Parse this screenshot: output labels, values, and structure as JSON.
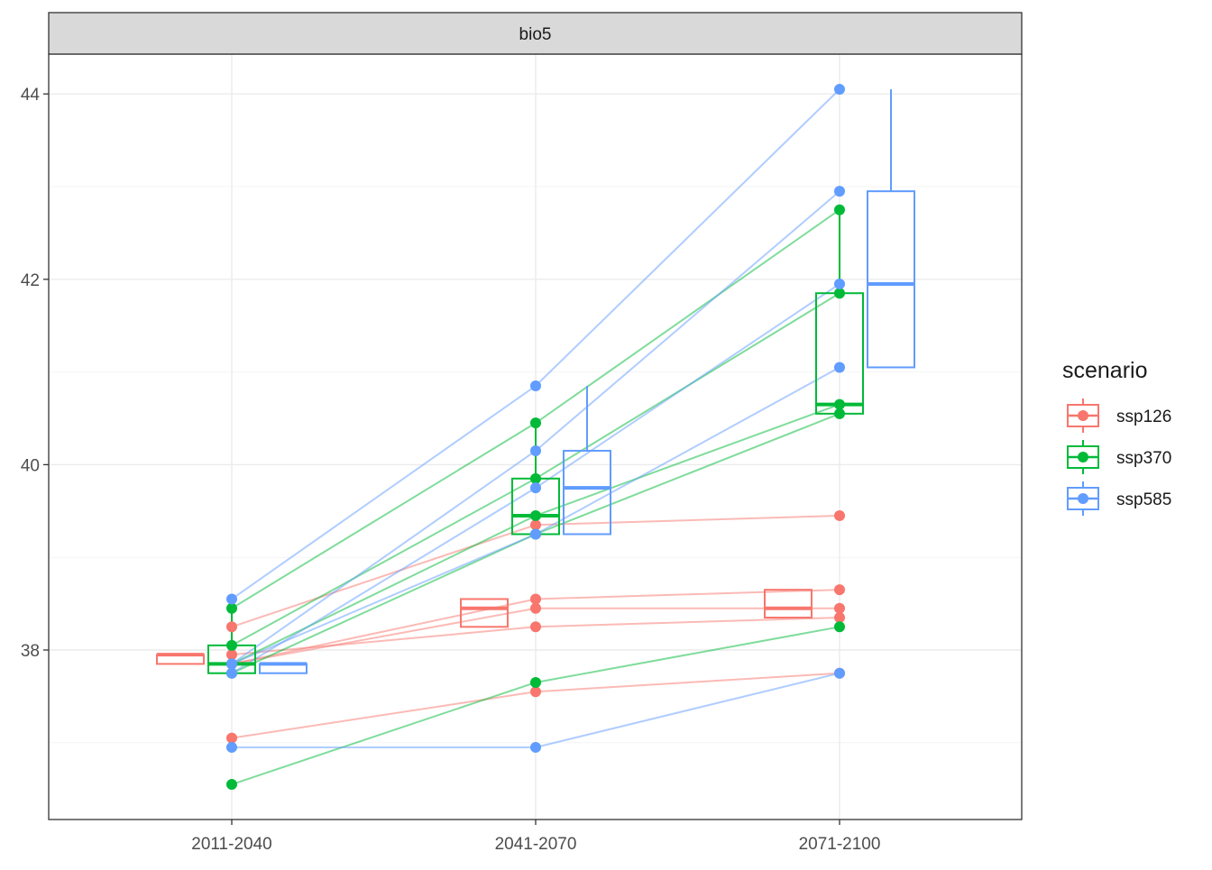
{
  "chart_data": {
    "type": "boxplot-with-lines",
    "facet_label": "bio5",
    "categories": [
      "2011-2040",
      "2041-2070",
      "2071-2100"
    ],
    "y_ticks": [
      38,
      40,
      42,
      44
    ],
    "y_tick_labels": [
      "38",
      "40",
      "42",
      "44"
    ],
    "ylim": [
      36.4,
      44.5
    ],
    "grid": true,
    "legend": {
      "title": "scenario",
      "placement": "right",
      "entries": [
        "ssp126",
        "ssp370",
        "ssp585"
      ]
    },
    "series": [
      {
        "name": "ssp126",
        "color": "#F8766D",
        "trajectories": [
          [
            37.95,
            38.25,
            38.35
          ],
          [
            38.25,
            39.35,
            39.45
          ],
          [
            37.85,
            38.55,
            38.65
          ],
          [
            37.85,
            38.45,
            38.45
          ],
          [
            37.05,
            37.55,
            37.75
          ]
        ],
        "boxes": [
          {
            "q1": 37.85,
            "median": 37.95,
            "q3": 37.95,
            "min": 37.85,
            "max": 37.95
          },
          {
            "q1": 38.25,
            "median": 38.45,
            "q3": 38.55,
            "min": 38.25,
            "max": 38.55
          },
          {
            "q1": 38.35,
            "median": 38.45,
            "q3": 38.65,
            "min": 38.35,
            "max": 38.65
          }
        ],
        "outliers": [
          [
            37.05,
            38.25
          ],
          [
            39.35,
            37.55
          ],
          [
            39.45,
            37.75
          ]
        ]
      },
      {
        "name": "ssp370",
        "color": "#00BA38",
        "trajectories": [
          [
            38.45,
            40.45,
            42.75
          ],
          [
            38.05,
            39.85,
            41.85
          ],
          [
            37.85,
            39.45,
            40.65
          ],
          [
            37.75,
            39.25,
            40.55
          ],
          [
            36.55,
            37.65,
            38.25
          ]
        ],
        "boxes": [
          {
            "q1": 37.75,
            "median": 37.85,
            "q3": 38.05,
            "min": 37.75,
            "max": 38.45
          },
          {
            "q1": 39.25,
            "median": 39.45,
            "q3": 39.85,
            "min": 39.25,
            "max": 40.45
          },
          {
            "q1": 40.55,
            "median": 40.65,
            "q3": 41.85,
            "min": 40.55,
            "max": 42.75
          }
        ],
        "outliers": [
          [
            36.55
          ],
          [
            37.65
          ],
          [
            38.25
          ]
        ]
      },
      {
        "name": "ssp585",
        "color": "#619CFF",
        "trajectories": [
          [
            38.55,
            40.85,
            44.05
          ],
          [
            37.85,
            40.15,
            42.95
          ],
          [
            37.75,
            39.75,
            41.95
          ],
          [
            37.85,
            39.25,
            41.05
          ],
          [
            36.95,
            36.95,
            37.75
          ]
        ],
        "boxes": [
          {
            "q1": 37.75,
            "median": 37.85,
            "q3": 37.85,
            "min": 37.75,
            "max": 37.85
          },
          {
            "q1": 39.25,
            "median": 39.75,
            "q3": 40.15,
            "min": 39.25,
            "max": 40.85
          },
          {
            "q1": 41.05,
            "median": 41.95,
            "q3": 42.95,
            "min": 41.05,
            "max": 44.05
          }
        ],
        "outliers": [
          [
            36.95,
            38.55
          ],
          [
            36.95
          ],
          [
            37.75
          ]
        ]
      }
    ]
  }
}
